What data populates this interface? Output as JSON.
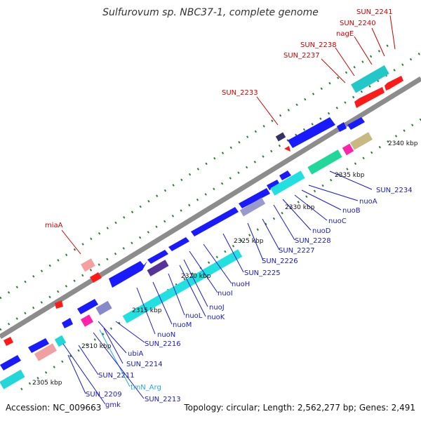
{
  "title": "Sulfurovum sp. NBC37-1, complete genome",
  "footer": {
    "accession": "Accession: NC_009663",
    "summary": "Topology: circular; Length: 2,562,277 bp; Genes: 2,491"
  },
  "colors": {
    "cds_forward": "#1a1aff",
    "cds_reverse": "#ff1a1a",
    "gene_cyan": "#22d7d7",
    "trna_label": "#22aadd",
    "label_red": "#cc0000",
    "label_blue": "#1a1acc",
    "backbone": "#8c8c8c",
    "ticks": "#2e7d32"
  },
  "ruler_labels": [
    "2305 kbp",
    "2310 kbp",
    "2315 kbp",
    "2320 kbp",
    "2325 kbp",
    "2330 kbp",
    "2335 kbp",
    "2340 kbp"
  ],
  "gene_labels_top": [
    "SUN_2241",
    "SUN_2240",
    "nagE",
    "SUN_2238",
    "SUN_2237",
    "SUN_2233",
    "miaA"
  ],
  "gene_labels_bottom": [
    "SUN_2234",
    "nuoA",
    "nuoB",
    "nuoC",
    "nuoD",
    "SUN_2228",
    "SUN_2227",
    "SUN_2226",
    "SUN_2225",
    "nuoH",
    "nuoI",
    "nuoJ",
    "nuoK",
    "nuoL",
    "nuoM",
    "nuoN",
    "SUN_2216",
    "ubiA",
    "SUN_2214",
    "SUN_2211",
    "trnN_Arg",
    "SUN_2213",
    "SUN_2209",
    "gmk"
  ]
}
